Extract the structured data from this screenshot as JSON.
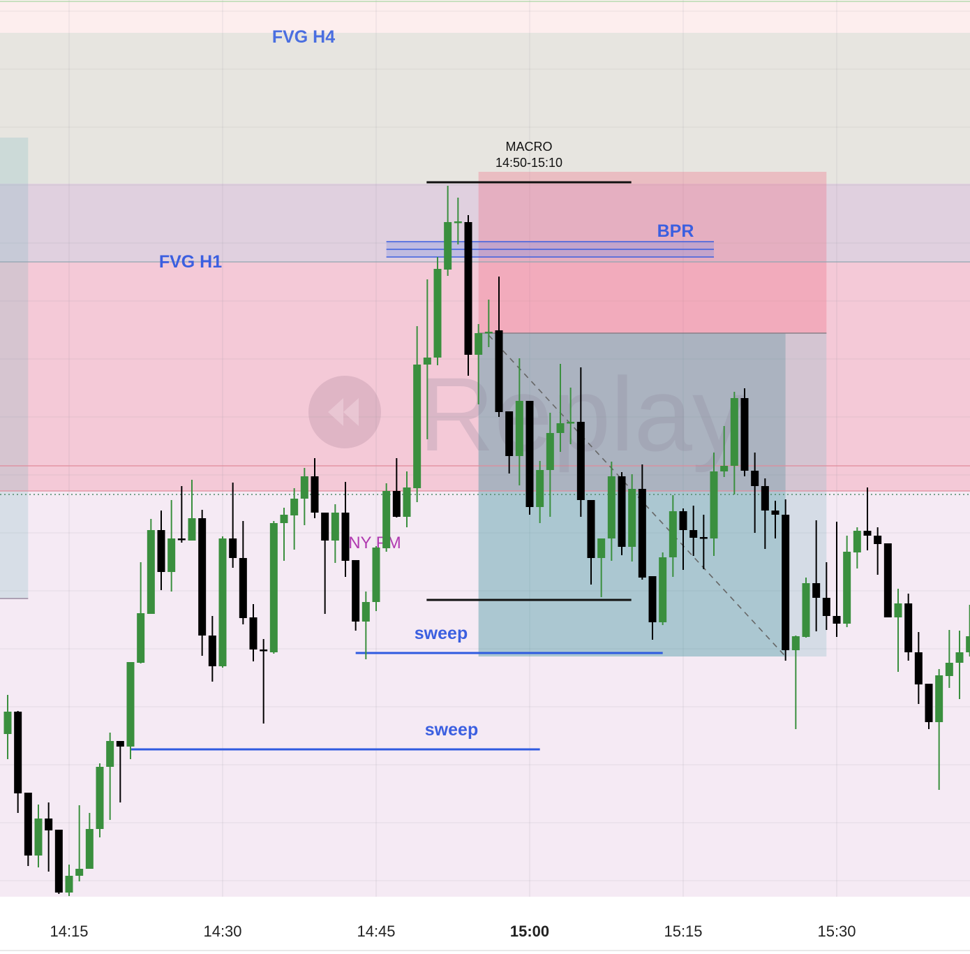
{
  "chart_data": {
    "type": "candlestick",
    "interval": "1m",
    "x_ticks": [
      {
        "t": "14:15",
        "label": "14:15",
        "bold": false
      },
      {
        "t": "14:30",
        "label": "14:30",
        "bold": false
      },
      {
        "t": "14:45",
        "label": "14:45",
        "bold": false
      },
      {
        "t": "15:00",
        "label": "15:00",
        "bold": true
      },
      {
        "t": "15:15",
        "label": "15:15",
        "bold": false
      },
      {
        "t": "15:30",
        "label": "15:30",
        "bold": false
      }
    ],
    "ylim": [
      0,
      130
    ],
    "grid": true,
    "colors": {
      "up": "#3a8f3e",
      "down": "#000000",
      "sweep": "#2f5be0",
      "label_blue": "#3b5fe0",
      "session_label": "#b03ab0"
    },
    "candles": [
      [
        "14:09",
        24.9,
        30.5,
        21.3,
        28.1
      ],
      [
        "14:10",
        28.1,
        28.2,
        13.6,
        16.4
      ],
      [
        "14:11",
        16.5,
        16.5,
        6.0,
        7.5
      ],
      [
        "14:12",
        7.5,
        14.8,
        5.8,
        12.8
      ],
      [
        "14:13",
        12.8,
        15.1,
        5.2,
        11.1
      ],
      [
        "14:14",
        11.2,
        11.2,
        2.0,
        2.2
      ],
      [
        "14:15",
        2.2,
        6.2,
        1.7,
        4.6
      ],
      [
        "14:16",
        4.6,
        14.7,
        3.8,
        5.6
      ],
      [
        "14:17",
        5.6,
        13.6,
        5.6,
        11.3
      ],
      [
        "14:18",
        11.3,
        20.7,
        10.1,
        20.2
      ],
      [
        "14:19",
        20.2,
        25.1,
        12.6,
        23.9
      ],
      [
        "14:20",
        23.9,
        23.9,
        15.1,
        23.1
      ],
      [
        "14:21",
        23.1,
        35.2,
        21.3,
        35.2
      ],
      [
        "14:22",
        35.1,
        49.5,
        35.0,
        42.2
      ],
      [
        "14:23",
        42.1,
        55.7,
        42.1,
        54.1
      ],
      [
        "14:24",
        54.1,
        56.9,
        45.5,
        48.1
      ],
      [
        "14:25",
        48.1,
        58.4,
        45.3,
        52.9
      ],
      [
        "14:26",
        52.9,
        60.4,
        52.3,
        52.8
      ],
      [
        "14:27",
        52.6,
        61.3,
        52.6,
        55.8
      ],
      [
        "14:28",
        55.8,
        57.0,
        36.1,
        39.0
      ],
      [
        "14:29",
        39.0,
        41.8,
        32.4,
        34.6
      ],
      [
        "14:30",
        34.6,
        53.2,
        34.4,
        52.9
      ],
      [
        "14:31",
        52.9,
        60.9,
        48.7,
        50.1
      ],
      [
        "14:32",
        50.1,
        55.4,
        40.6,
        41.5
      ],
      [
        "14:33",
        41.6,
        43.5,
        35.3,
        37.0
      ],
      [
        "14:34",
        37.0,
        38.5,
        26.4,
        36.8
      ],
      [
        "14:35",
        36.6,
        55.4,
        36.4,
        55.1
      ],
      [
        "14:36",
        55.1,
        57.3,
        49.7,
        56.3
      ],
      [
        "14:37",
        56.2,
        60.1,
        51.3,
        58.6
      ],
      [
        "14:38",
        58.6,
        63.0,
        54.8,
        61.8
      ],
      [
        "14:39",
        61.8,
        64.4,
        55.8,
        56.6
      ],
      [
        "14:40",
        56.6,
        56.6,
        42.1,
        52.6
      ],
      [
        "14:41",
        52.6,
        57.8,
        49.4,
        56.6
      ],
      [
        "14:42",
        56.6,
        61.0,
        47.4,
        49.7
      ],
      [
        "14:43",
        49.8,
        49.8,
        39.7,
        41.0
      ],
      [
        "14:44",
        41.0,
        45.3,
        35.6,
        43.8
      ],
      [
        "14:45",
        43.8,
        51.8,
        42.5,
        51.6
      ],
      [
        "14:46",
        51.5,
        60.8,
        51.0,
        59.7
      ],
      [
        "14:47",
        59.7,
        64.4,
        55.9,
        56.0
      ],
      [
        "14:48",
        56.0,
        62.5,
        54.5,
        60.2
      ],
      [
        "14:49",
        60.1,
        83.3,
        58.1,
        77.8
      ],
      [
        "14:50",
        77.8,
        90.0,
        67.1,
        78.8
      ],
      [
        "14:51",
        78.8,
        93.2,
        77.7,
        91.5
      ],
      [
        "14:52",
        91.4,
        103.4,
        90.5,
        98.2
      ],
      [
        "14:53",
        98.2,
        101.7,
        95.0,
        98.3
      ],
      [
        "14:54",
        98.2,
        99.2,
        76.2,
        79.2
      ],
      [
        "14:55",
        79.2,
        83.6,
        72.1,
        82.3
      ],
      [
        "14:56",
        82.3,
        87.1,
        80.3,
        82.5
      ],
      [
        "14:57",
        82.7,
        90.4,
        70.3,
        71.0
      ],
      [
        "14:58",
        71.1,
        71.1,
        62.2,
        64.7
      ],
      [
        "14:59",
        64.7,
        78.7,
        60.5,
        72.6
      ],
      [
        "15:00",
        72.6,
        72.6,
        56.3,
        57.4
      ],
      [
        "15:01",
        57.4,
        64.0,
        55.1,
        62.7
      ],
      [
        "15:02",
        62.7,
        70.9,
        56.0,
        68.0
      ],
      [
        "15:03",
        68.0,
        77.9,
        65.3,
        69.4
      ],
      [
        "15:04",
        69.4,
        74.5,
        66.4,
        69.6
      ],
      [
        "15:05",
        69.6,
        77.4,
        56.0,
        58.4
      ],
      [
        "15:06",
        58.4,
        58.4,
        46.3,
        50.1
      ],
      [
        "15:07",
        50.1,
        52.9,
        44.5,
        52.9
      ],
      [
        "15:08",
        52.9,
        63.9,
        49.7,
        61.8
      ],
      [
        "15:09",
        61.8,
        62.4,
        50.5,
        51.7
      ],
      [
        "15:10",
        51.7,
        62.1,
        49.6,
        60.0
      ],
      [
        "15:11",
        60.0,
        63.5,
        47.0,
        47.3
      ],
      [
        "15:12",
        47.5,
        47.5,
        38.4,
        40.9
      ],
      [
        "15:13",
        40.9,
        50.9,
        40.5,
        50.2
      ],
      [
        "15:14",
        50.2,
        59.1,
        47.4,
        56.8
      ],
      [
        "15:15",
        56.8,
        57.2,
        48.4,
        54.1
      ],
      [
        "15:16",
        54.1,
        57.6,
        50.4,
        53.0
      ],
      [
        "15:17",
        53.1,
        56.3,
        48.5,
        53.0
      ],
      [
        "15:18",
        52.9,
        65.2,
        50.4,
        62.5
      ],
      [
        "15:19",
        62.5,
        69.0,
        61.7,
        63.3
      ],
      [
        "15:20",
        63.3,
        73.9,
        59.2,
        73.0
      ],
      [
        "15:21",
        73.0,
        74.4,
        61.8,
        62.6
      ],
      [
        "15:22",
        62.6,
        65.2,
        53.7,
        60.4
      ],
      [
        "15:23",
        60.4,
        61.5,
        51.4,
        56.9
      ],
      [
        "15:24",
        56.9,
        58.3,
        52.9,
        56.3
      ],
      [
        "15:25",
        56.3,
        58.5,
        35.4,
        36.9
      ],
      [
        "15:26",
        36.9,
        39.0,
        25.6,
        38.9
      ],
      [
        "15:27",
        38.8,
        47.3,
        38.7,
        46.5
      ],
      [
        "15:28",
        46.5,
        55.5,
        39.6,
        44.4
      ],
      [
        "15:29",
        44.4,
        49.5,
        39.8,
        41.8
      ],
      [
        "15:30",
        41.8,
        55.3,
        38.8,
        40.7
      ],
      [
        "15:31",
        40.7,
        53.3,
        40.2,
        51.0
      ],
      [
        "15:32",
        50.9,
        54.5,
        48.6,
        54.0
      ],
      [
        "15:33",
        54.0,
        60.2,
        51.2,
        53.3
      ],
      [
        "15:34",
        53.3,
        54.5,
        47.7,
        52.1
      ],
      [
        "15:35",
        52.2,
        52.2,
        41.6,
        41.6
      ],
      [
        "15:36",
        41.6,
        45.7,
        33.8,
        43.6
      ],
      [
        "15:37",
        43.6,
        45.0,
        35.4,
        36.6
      ],
      [
        "15:38",
        36.6,
        39.5,
        29.2,
        32.0
      ],
      [
        "15:39",
        32.1,
        32.1,
        25.6,
        26.6
      ],
      [
        "15:40",
        26.6,
        34.2,
        16.9,
        33.3
      ],
      [
        "15:41",
        33.2,
        39.8,
        31.5,
        35.1
      ],
      [
        "15:42",
        35.1,
        39.7,
        29.9,
        36.6
      ],
      [
        "15:43",
        36.6,
        43.4,
        36.0,
        38.9
      ]
    ],
    "zones": [
      {
        "name": "top-band",
        "top": 129.7,
        "bottom": 125.3,
        "color": "#fdeeee"
      },
      {
        "name": "fvg-h4",
        "label": "FVG H4",
        "top": 125.3,
        "bottom": 103.7,
        "color": "#e7e5e0"
      },
      {
        "name": "fvg-h1-upper",
        "top": 103.7,
        "bottom": 92.5,
        "color": "#e0d0df"
      },
      {
        "name": "fvg-h1",
        "label": "FVG H1",
        "top": 92.5,
        "bottom": 59.7,
        "color": "#f4c9d7"
      },
      {
        "name": "lower-area",
        "top": 59.7,
        "bottom": 0,
        "color": "#f5eaf4"
      }
    ],
    "levels": [
      {
        "name": "top-green-line",
        "price": 129.8,
        "color": "#a8d4a0",
        "style": "solid"
      },
      {
        "name": "fvg-h1-top-line",
        "price": 92.5,
        "color": "#8fa5b0",
        "style": "solid"
      },
      {
        "name": "fvg-red-line-1",
        "price": 63.3,
        "color": "#e08a9a",
        "style": "solid"
      },
      {
        "name": "fvg-red-line-2",
        "price": 59.7,
        "color": "#e08a9a",
        "style": "solid"
      },
      {
        "name": "dotted-level",
        "price": 59.2,
        "color": "#4f8a6a",
        "style": "dotted"
      }
    ],
    "boxes": [
      {
        "name": "left-box",
        "from": "14:08",
        "to": "14:11",
        "top": 110.3,
        "bottom": 44.3,
        "color": "rgba(110,180,185,0.22)",
        "border": "#9a8aa0"
      },
      {
        "name": "stop-box",
        "from": "14:55",
        "to": "15:29",
        "top": 105.4,
        "bottom": 82.3,
        "color": "rgba(240,110,135,0.33)"
      },
      {
        "name": "target-box",
        "from": "14:55",
        "to": "15:25",
        "top": 82.3,
        "bottom": 36.0,
        "color": "rgba(70,150,160,0.42)"
      },
      {
        "name": "target-box-ext",
        "from": "15:25",
        "to": "15:29",
        "top": 82.3,
        "bottom": 36.0,
        "color": "rgba(140,190,200,0.3)"
      }
    ],
    "macro": {
      "title": "MACRO",
      "range": "14:50-15:10",
      "from": "14:50",
      "to": "15:10",
      "high": 103.9,
      "low": 44.1
    },
    "bpr": {
      "label": "BPR",
      "from": "14:46",
      "to": "15:18",
      "lines": [
        95.4,
        94.3,
        93.2
      ]
    },
    "projection": {
      "from": "14:56",
      "from_price": 82.0,
      "to": "15:25",
      "to_price": 36.0
    },
    "sweeps": [
      {
        "label": "sweep",
        "from": "14:43",
        "to": "15:13",
        "price": 36.5
      },
      {
        "label": "sweep",
        "from": "14:21",
        "to": "15:01",
        "price": 22.7
      }
    ],
    "session_label": "NY PM",
    "watermark": "Replay"
  }
}
